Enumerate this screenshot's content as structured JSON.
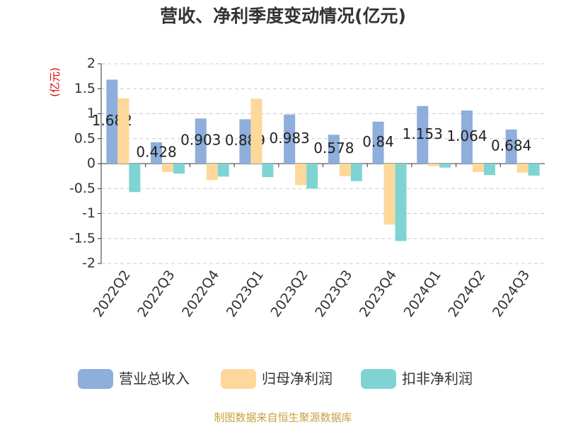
{
  "chart_data": {
    "type": "bar",
    "title": "营收、净利季度变动情况(亿元)",
    "y_label": "(亿元)",
    "categories": [
      "2022Q2",
      "2022Q3",
      "2022Q4",
      "2023Q1",
      "2023Q2",
      "2023Q3",
      "2023Q4",
      "2024Q1",
      "2024Q2",
      "2024Q3"
    ],
    "series": [
      {
        "name": "营业总收入",
        "color": "#8eaedb",
        "values": [
          1.682,
          0.428,
          0.903,
          0.889,
          0.983,
          0.578,
          0.84,
          1.153,
          1.064,
          0.684
        ]
      },
      {
        "name": "归母净利润",
        "color": "#fdd89a",
        "values": [
          1.31,
          -0.17,
          -0.33,
          1.3,
          -0.43,
          -0.25,
          -1.22,
          -0.05,
          -0.17,
          -0.18
        ]
      },
      {
        "name": "扣非净利润",
        "color": "#7fd4d3",
        "values": [
          -0.57,
          -0.2,
          -0.26,
          -0.27,
          -0.5,
          -0.35,
          -1.55,
          -0.08,
          -0.23,
          -0.24
        ]
      }
    ],
    "ylim": [
      -2,
      2
    ],
    "yticks": [
      -2,
      -1.5,
      -1,
      -0.5,
      0,
      0.5,
      1,
      1.5,
      2
    ],
    "grid": true,
    "legend_position": "bottom",
    "source": "制图数据来自恒生聚源数据库"
  }
}
